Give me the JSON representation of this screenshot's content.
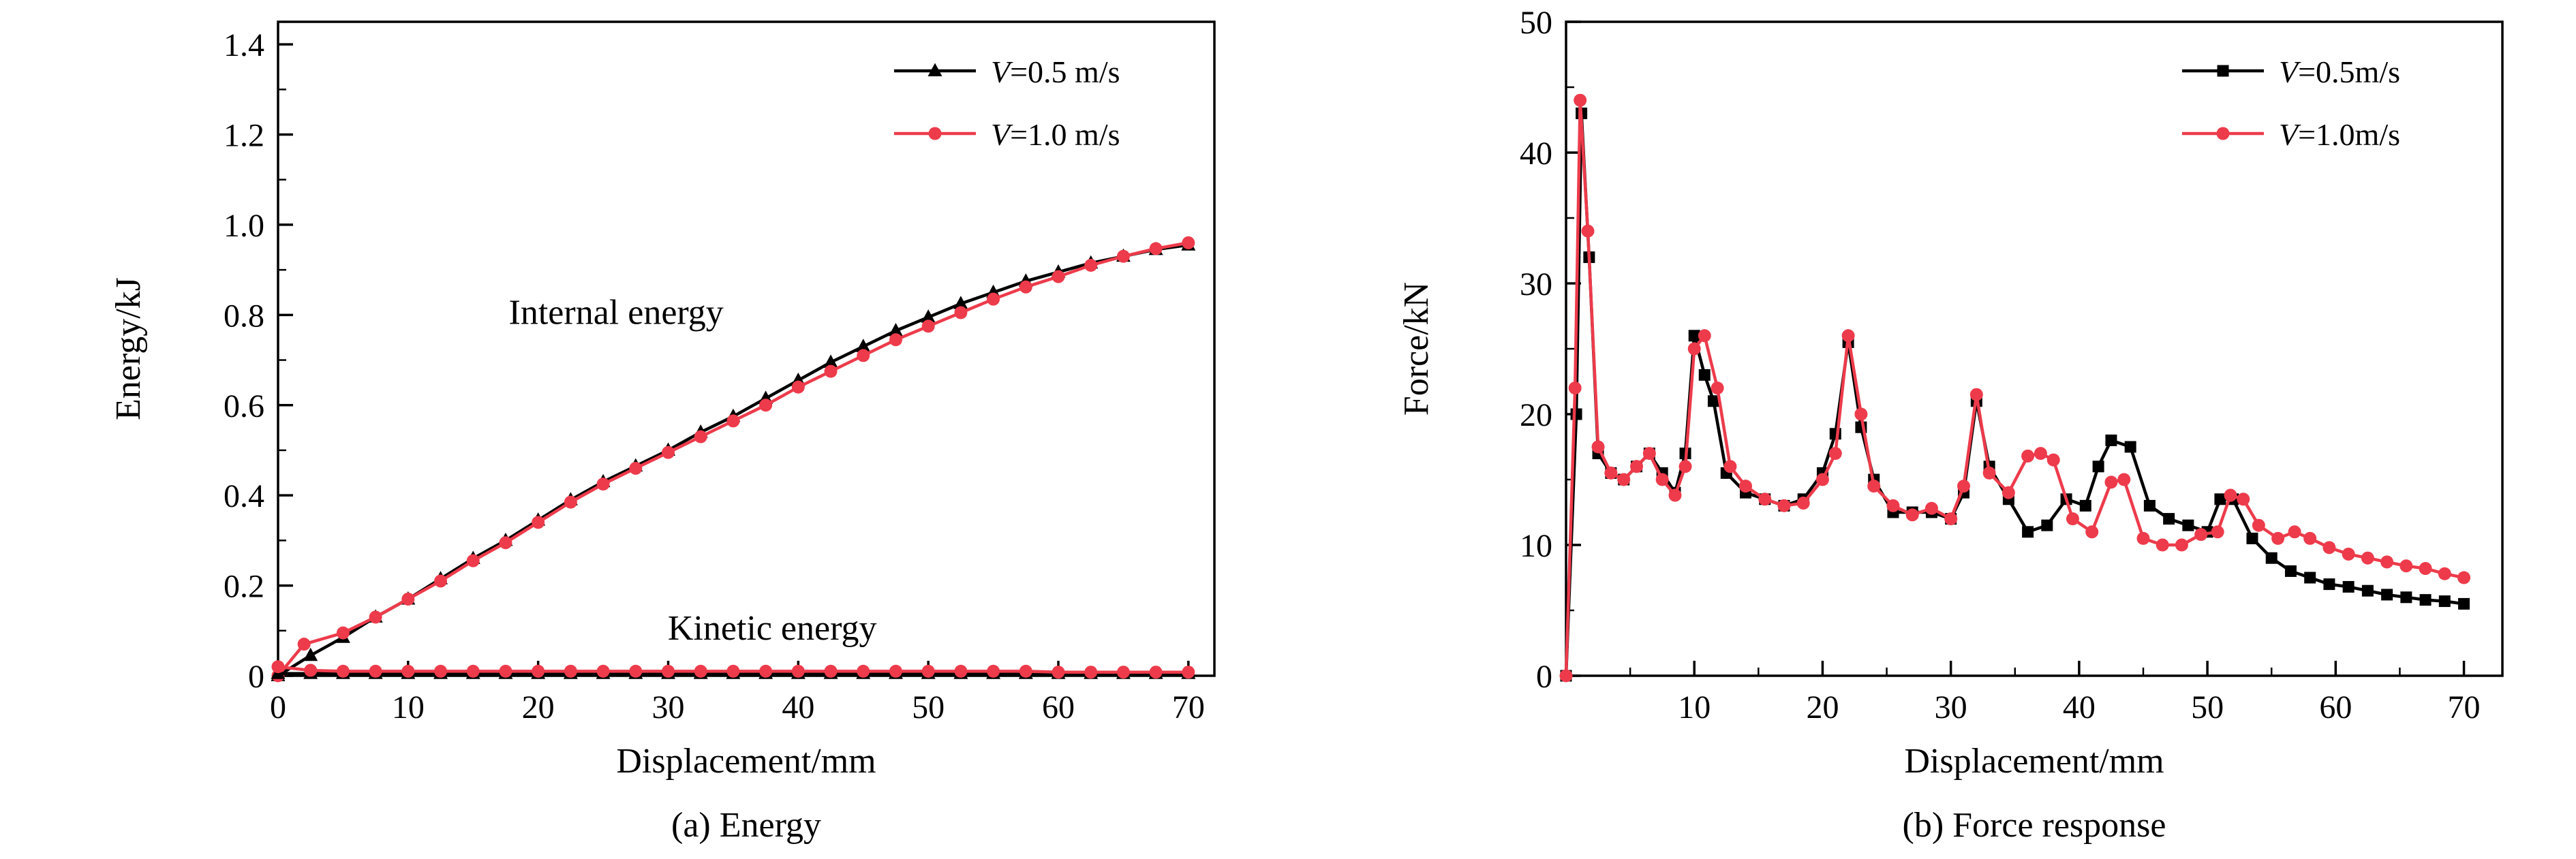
{
  "figure": {
    "background": "#ffffff",
    "black": "#000000",
    "accent_red": "#ed3b4b"
  },
  "chart_data": [
    {
      "type": "line",
      "title": "(a) Energy",
      "xlabel": "Displacement/mm",
      "ylabel": "Energy/kJ",
      "xlim": [
        0,
        72
      ],
      "ylim": [
        0,
        1.45
      ],
      "grid": false,
      "legend_position": "top-right",
      "xticks": {
        "values": [
          0,
          10,
          20,
          30,
          40,
          50,
          60,
          70
        ],
        "labels": [
          "0",
          "10",
          "20",
          "30",
          "40",
          "50",
          "60",
          "70"
        ]
      },
      "yticks": {
        "values": [
          0,
          0.2,
          0.4,
          0.6,
          0.8,
          1.0,
          1.2,
          1.4
        ],
        "labels": [
          "0",
          "0.2",
          "0.4",
          "0.6",
          "0.8",
          "1.0",
          "1.2",
          "1.4"
        ]
      },
      "minor_x_step": 5,
      "minor_y_step": 0.1,
      "legend": {
        "entries": [
          {
            "label": "V=0.5 m/s",
            "color": "#000000",
            "marker": "triangle"
          },
          {
            "label": "V=1.0 m/s",
            "color": "#ed3b4b",
            "marker": "circle"
          }
        ]
      },
      "annotations": [
        {
          "text": "Internal energy",
          "x": 26,
          "y": 0.78
        },
        {
          "text": "Kinetic energy",
          "x": 38,
          "y": 0.08
        }
      ],
      "series": [
        {
          "name": "internal-energy-v0.5",
          "color": "#000000",
          "marker": "triangle",
          "points": [
            [
              0,
              0
            ],
            [
              2.5,
              0.045
            ],
            [
              5,
              0.085
            ],
            [
              7.5,
              0.13
            ],
            [
              10,
              0.17
            ],
            [
              12.5,
              0.215
            ],
            [
              15,
              0.26
            ],
            [
              17.5,
              0.3
            ],
            [
              20,
              0.345
            ],
            [
              22.5,
              0.39
            ],
            [
              25,
              0.43
            ],
            [
              27.5,
              0.465
            ],
            [
              30,
              0.5
            ],
            [
              32.5,
              0.54
            ],
            [
              35,
              0.575
            ],
            [
              37.5,
              0.615
            ],
            [
              40,
              0.655
            ],
            [
              42.5,
              0.695
            ],
            [
              45,
              0.73
            ],
            [
              47.5,
              0.765
            ],
            [
              50,
              0.795
            ],
            [
              52.5,
              0.825
            ],
            [
              55,
              0.85
            ],
            [
              57.5,
              0.875
            ],
            [
              60,
              0.895
            ],
            [
              62.5,
              0.915
            ],
            [
              65,
              0.93
            ],
            [
              67.5,
              0.945
            ],
            [
              70,
              0.955
            ]
          ]
        },
        {
          "name": "internal-energy-v1.0",
          "color": "#ed3b4b",
          "marker": "circle",
          "points": [
            [
              0,
              0
            ],
            [
              2,
              0.07
            ],
            [
              5,
              0.095
            ],
            [
              7.5,
              0.13
            ],
            [
              10,
              0.17
            ],
            [
              12.5,
              0.21
            ],
            [
              15,
              0.255
            ],
            [
              17.5,
              0.295
            ],
            [
              20,
              0.34
            ],
            [
              22.5,
              0.385
            ],
            [
              25,
              0.425
            ],
            [
              27.5,
              0.46
            ],
            [
              30,
              0.495
            ],
            [
              32.5,
              0.53
            ],
            [
              35,
              0.565
            ],
            [
              37.5,
              0.6
            ],
            [
              40,
              0.64
            ],
            [
              42.5,
              0.675
            ],
            [
              45,
              0.71
            ],
            [
              47.5,
              0.745
            ],
            [
              50,
              0.775
            ],
            [
              52.5,
              0.805
            ],
            [
              55,
              0.835
            ],
            [
              57.5,
              0.862
            ],
            [
              60,
              0.885
            ],
            [
              62.5,
              0.91
            ],
            [
              65,
              0.93
            ],
            [
              67.5,
              0.947
            ],
            [
              70,
              0.96
            ]
          ]
        },
        {
          "name": "kinetic-energy-v0.5",
          "color": "#000000",
          "marker": "triangle",
          "points": [
            [
              0,
              0.005
            ],
            [
              2.5,
              0.005
            ],
            [
              5,
              0.005
            ],
            [
              7.5,
              0.005
            ],
            [
              10,
              0.005
            ],
            [
              12.5,
              0.005
            ],
            [
              15,
              0.005
            ],
            [
              17.5,
              0.005
            ],
            [
              20,
              0.005
            ],
            [
              22.5,
              0.005
            ],
            [
              25,
              0.005
            ],
            [
              27.5,
              0.005
            ],
            [
              30,
              0.005
            ],
            [
              32.5,
              0.005
            ],
            [
              35,
              0.005
            ],
            [
              37.5,
              0.005
            ],
            [
              40,
              0.005
            ],
            [
              42.5,
              0.005
            ],
            [
              45,
              0.005
            ],
            [
              47.5,
              0.005
            ],
            [
              50,
              0.005
            ],
            [
              52.5,
              0.005
            ],
            [
              55,
              0.005
            ],
            [
              57.5,
              0.005
            ],
            [
              60,
              0.005
            ],
            [
              62.5,
              0.005
            ],
            [
              65,
              0.005
            ],
            [
              67.5,
              0.005
            ],
            [
              70,
              0.005
            ]
          ]
        },
        {
          "name": "kinetic-energy-v1.0",
          "color": "#ed3b4b",
          "marker": "circle",
          "points": [
            [
              0,
              0.02
            ],
            [
              2.5,
              0.012
            ],
            [
              5,
              0.01
            ],
            [
              7.5,
              0.01
            ],
            [
              10,
              0.01
            ],
            [
              12.5,
              0.01
            ],
            [
              15,
              0.01
            ],
            [
              17.5,
              0.01
            ],
            [
              20,
              0.01
            ],
            [
              22.5,
              0.01
            ],
            [
              25,
              0.01
            ],
            [
              27.5,
              0.01
            ],
            [
              30,
              0.01
            ],
            [
              32.5,
              0.01
            ],
            [
              35,
              0.01
            ],
            [
              37.5,
              0.01
            ],
            [
              40,
              0.01
            ],
            [
              42.5,
              0.01
            ],
            [
              45,
              0.01
            ],
            [
              47.5,
              0.01
            ],
            [
              50,
              0.01
            ],
            [
              52.5,
              0.01
            ],
            [
              55,
              0.01
            ],
            [
              57.5,
              0.01
            ],
            [
              60,
              0.008
            ],
            [
              62.5,
              0.008
            ],
            [
              65,
              0.008
            ],
            [
              67.5,
              0.008
            ],
            [
              70,
              0.008
            ]
          ]
        }
      ]
    },
    {
      "type": "line",
      "title": "(b) Force response",
      "xlabel": "Displacement/mm",
      "ylabel": "Force/kN",
      "xlim": [
        0,
        73
      ],
      "ylim": [
        0,
        50
      ],
      "grid": false,
      "legend_position": "top-right",
      "xticks": {
        "values": [
          10,
          20,
          30,
          40,
          50,
          60,
          70
        ],
        "labels": [
          "10",
          "20",
          "30",
          "40",
          "50",
          "60",
          "70"
        ]
      },
      "yticks": {
        "values": [
          0,
          10,
          20,
          30,
          40,
          50
        ],
        "labels": [
          "0",
          "10",
          "20",
          "30",
          "40",
          "50"
        ]
      },
      "minor_x_step": 5,
      "minor_y_step": 5,
      "legend": {
        "entries": [
          {
            "label": "V=0.5m/s",
            "color": "#000000",
            "marker": "square"
          },
          {
            "label": "V=1.0m/s",
            "color": "#ed3b4b",
            "marker": "circle"
          }
        ]
      },
      "annotations": [],
      "series": [
        {
          "name": "force-v0.5",
          "color": "#000000",
          "marker": "square",
          "points": [
            [
              0,
              0
            ],
            [
              0.8,
              20
            ],
            [
              1.2,
              43
            ],
            [
              1.8,
              32
            ],
            [
              2.5,
              17
            ],
            [
              3.5,
              15.5
            ],
            [
              4.5,
              15
            ],
            [
              5.5,
              16
            ],
            [
              6.5,
              17
            ],
            [
              7.5,
              15.5
            ],
            [
              8.5,
              14
            ],
            [
              9.3,
              17
            ],
            [
              10,
              26
            ],
            [
              10.8,
              23
            ],
            [
              11.5,
              21
            ],
            [
              12.5,
              15.5
            ],
            [
              14,
              14
            ],
            [
              15.5,
              13.5
            ],
            [
              17,
              13
            ],
            [
              18.5,
              13.5
            ],
            [
              20,
              15.5
            ],
            [
              21,
              18.5
            ],
            [
              22,
              25.5
            ],
            [
              23,
              19
            ],
            [
              24,
              15
            ],
            [
              25.5,
              12.5
            ],
            [
              27,
              12.5
            ],
            [
              28.5,
              12.5
            ],
            [
              30,
              12
            ],
            [
              31,
              14
            ],
            [
              32,
              21
            ],
            [
              33,
              16
            ],
            [
              34.5,
              13.5
            ],
            [
              36,
              11
            ],
            [
              37.5,
              11.5
            ],
            [
              39,
              13.5
            ],
            [
              40.5,
              13
            ],
            [
              41.5,
              16
            ],
            [
              42.5,
              18
            ],
            [
              44,
              17.5
            ],
            [
              45.5,
              13
            ],
            [
              47,
              12
            ],
            [
              48.5,
              11.5
            ],
            [
              50,
              11
            ],
            [
              51,
              13.5
            ],
            [
              52,
              13.5
            ],
            [
              53.5,
              10.5
            ],
            [
              55,
              9
            ],
            [
              56.5,
              8
            ],
            [
              58,
              7.5
            ],
            [
              59.5,
              7
            ],
            [
              61,
              6.8
            ],
            [
              62.5,
              6.5
            ],
            [
              64,
              6.2
            ],
            [
              65.5,
              6
            ],
            [
              67,
              5.8
            ],
            [
              68.5,
              5.7
            ],
            [
              70,
              5.5
            ]
          ]
        },
        {
          "name": "force-v1.0",
          "color": "#ed3b4b",
          "marker": "circle",
          "points": [
            [
              0,
              0
            ],
            [
              0.7,
              22
            ],
            [
              1.1,
              44
            ],
            [
              1.7,
              34
            ],
            [
              2.5,
              17.5
            ],
            [
              3.5,
              15.5
            ],
            [
              4.5,
              15
            ],
            [
              5.5,
              16
            ],
            [
              6.5,
              17
            ],
            [
              7.5,
              15
            ],
            [
              8.5,
              13.8
            ],
            [
              9.3,
              16
            ],
            [
              10,
              25
            ],
            [
              10.8,
              26
            ],
            [
              11.8,
              22
            ],
            [
              12.8,
              16
            ],
            [
              14,
              14.5
            ],
            [
              15.5,
              13.5
            ],
            [
              17,
              13
            ],
            [
              18.5,
              13.2
            ],
            [
              20,
              15
            ],
            [
              21,
              17
            ],
            [
              22,
              26
            ],
            [
              23,
              20
            ],
            [
              24,
              14.5
            ],
            [
              25.5,
              13
            ],
            [
              27,
              12.3
            ],
            [
              28.5,
              12.8
            ],
            [
              30,
              12
            ],
            [
              31,
              14.5
            ],
            [
              32,
              21.5
            ],
            [
              33,
              15.5
            ],
            [
              34.5,
              14
            ],
            [
              36,
              16.8
            ],
            [
              37,
              17
            ],
            [
              38,
              16.5
            ],
            [
              39.5,
              12
            ],
            [
              41,
              11
            ],
            [
              42.5,
              14.8
            ],
            [
              43.5,
              15
            ],
            [
              45,
              10.5
            ],
            [
              46.5,
              10
            ],
            [
              48,
              10
            ],
            [
              49.5,
              10.8
            ],
            [
              50.8,
              11
            ],
            [
              51.8,
              13.8
            ],
            [
              52.8,
              13.5
            ],
            [
              54,
              11.5
            ],
            [
              55.5,
              10.5
            ],
            [
              56.8,
              11
            ],
            [
              58,
              10.5
            ],
            [
              59.5,
              9.8
            ],
            [
              61,
              9.3
            ],
            [
              62.5,
              9
            ],
            [
              64,
              8.7
            ],
            [
              65.5,
              8.4
            ],
            [
              67,
              8.2
            ],
            [
              68.5,
              7.8
            ],
            [
              70,
              7.5
            ]
          ]
        }
      ]
    }
  ]
}
